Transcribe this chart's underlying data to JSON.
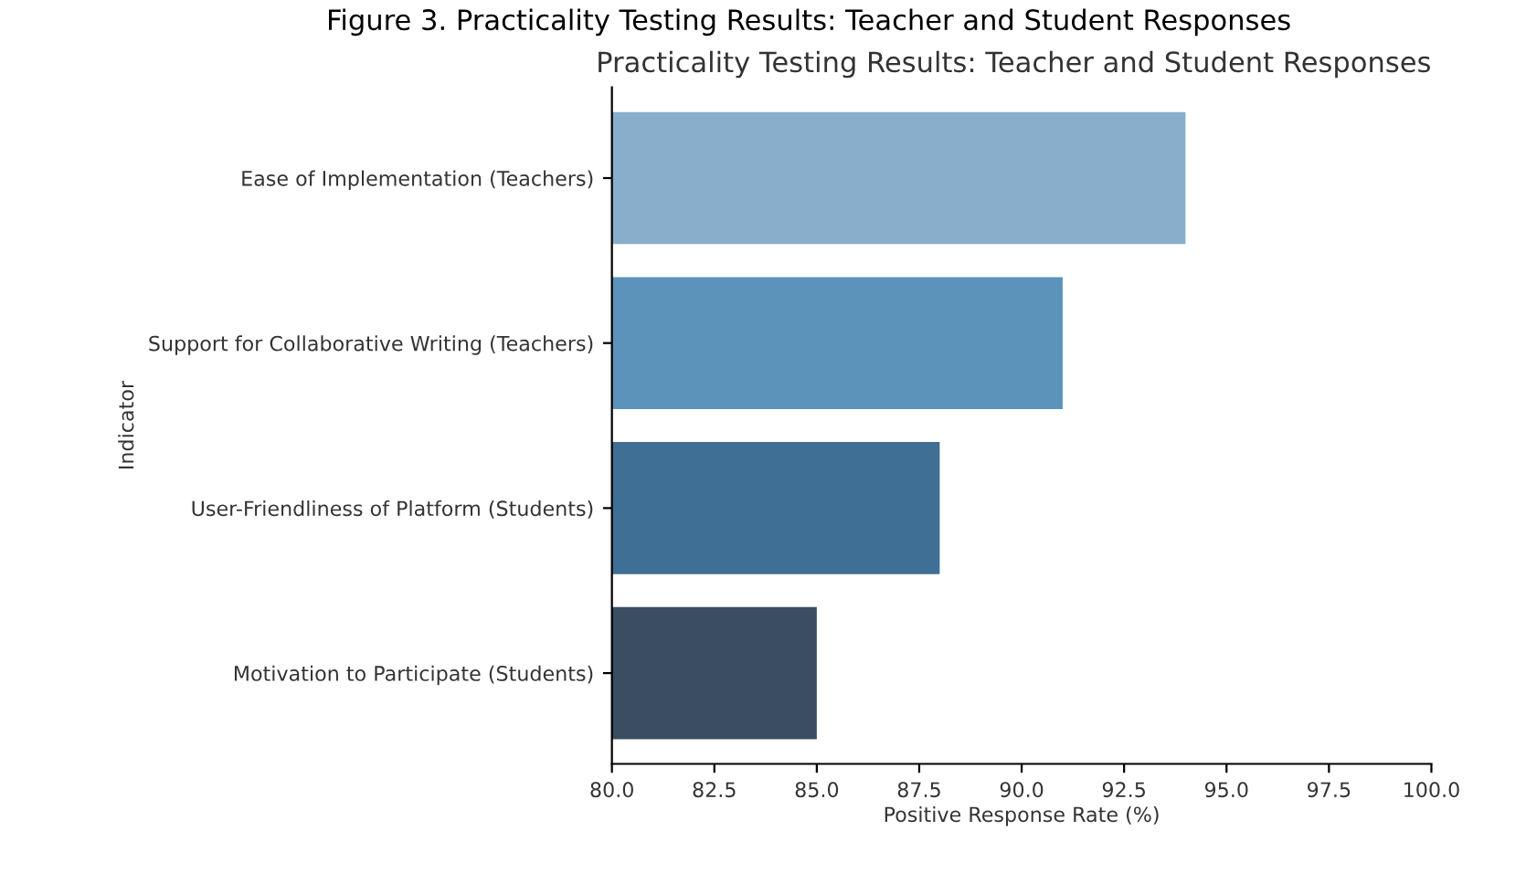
{
  "chart_data": {
    "type": "bar",
    "orientation": "horizontal",
    "title": "Practicality Testing Results: Teacher and Student Responses",
    "annotations": [
      "Figure 3. Practicality Testing Results: Teacher and Student Responses"
    ],
    "xlabel": "Positive Response Rate (%)",
    "ylabel": "Indicator",
    "categories": [
      "Ease of Implementation (Teachers)",
      "Support for Collaborative Writing (Teachers)",
      "User-Friendliness of Platform (Students)",
      "Motivation to Participate (Students)"
    ],
    "values": [
      94.0,
      91.0,
      88.0,
      85.0
    ],
    "colors": [
      "#88aecb",
      "#5b93bb",
      "#3f6f94",
      "#3a4d61"
    ],
    "xlim": [
      80,
      100
    ],
    "xticks": [
      {
        "value": 80,
        "label": "80.0"
      },
      {
        "value": 82.5,
        "label": "82.5"
      },
      {
        "value": 85,
        "label": "85.0"
      },
      {
        "value": 87.5,
        "label": "87.5"
      },
      {
        "value": 90,
        "label": "90.0"
      },
      {
        "value": 92.5,
        "label": "92.5"
      },
      {
        "value": 95,
        "label": "95.0"
      },
      {
        "value": 97.5,
        "label": "97.5"
      },
      {
        "value": 100,
        "label": "100.0"
      }
    ],
    "grid": false
  }
}
